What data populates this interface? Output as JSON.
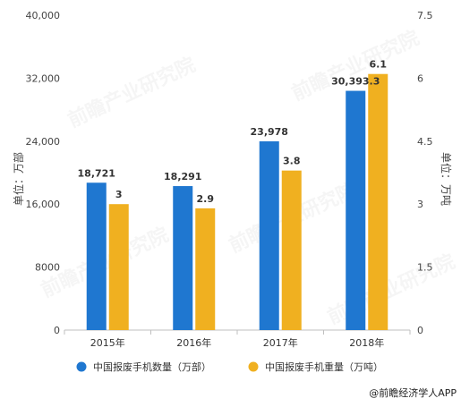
{
  "chart_data": {
    "type": "bar",
    "categories": [
      "2015年",
      "2016年",
      "2017年",
      "2018年"
    ],
    "series": [
      {
        "name": "中国报废手机数量（万部）",
        "values": [
          18721,
          18291,
          23978,
          30393.3
        ],
        "labels": [
          "18,721",
          "18,291",
          "23,978",
          "30,393.3"
        ],
        "color": "#1f77d0",
        "axis": "left"
      },
      {
        "name": "中国报废手机重量（万吨）",
        "values": [
          3,
          2.9,
          3.8,
          6.1
        ],
        "labels": [
          "3",
          "2.9",
          "3.8",
          "6.1"
        ],
        "color": "#f0b020",
        "axis": "right"
      }
    ],
    "left_axis": {
      "title": "单位：万部",
      "ylim": [
        0,
        40000
      ],
      "ticks": [
        "0",
        "8000",
        "16,000",
        "24,000",
        "32,000",
        "40,000"
      ]
    },
    "right_axis": {
      "title": "单位：万吨",
      "ylim": [
        0,
        7.5
      ],
      "ticks": [
        "0",
        "1.5",
        "3",
        "4.5",
        "6",
        "7.5"
      ]
    },
    "grid": false,
    "legend_position": "bottom"
  },
  "source": "@前瞻经济学人APP",
  "watermark": "前瞻产业研究院"
}
